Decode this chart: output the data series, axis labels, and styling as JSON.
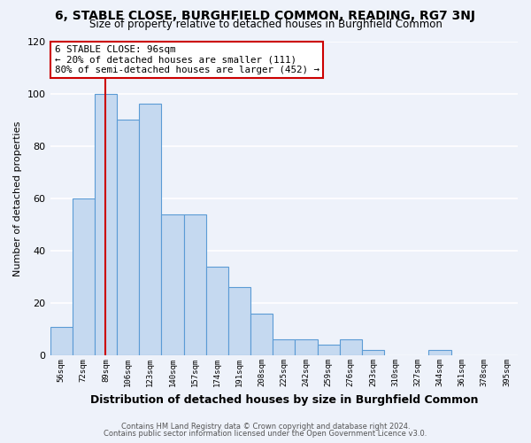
{
  "title": "6, STABLE CLOSE, BURGHFIELD COMMON, READING, RG7 3NJ",
  "subtitle": "Size of property relative to detached houses in Burghfield Common",
  "xlabel": "Distribution of detached houses by size in Burghfield Common",
  "ylabel": "Number of detached properties",
  "bin_labels": [
    "56sqm",
    "72sqm",
    "89sqm",
    "106sqm",
    "123sqm",
    "140sqm",
    "157sqm",
    "174sqm",
    "191sqm",
    "208sqm",
    "225sqm",
    "242sqm",
    "259sqm",
    "276sqm",
    "293sqm",
    "310sqm",
    "327sqm",
    "344sqm",
    "361sqm",
    "378sqm",
    "395sqm"
  ],
  "bar_heights": [
    11,
    60,
    100,
    90,
    96,
    54,
    54,
    34,
    26,
    16,
    6,
    6,
    4,
    6,
    2,
    0,
    0,
    2,
    0,
    0,
    0
  ],
  "bar_color": "#c5d9f0",
  "bar_edge_color": "#5b9bd5",
  "vline_x": 2,
  "vline_color": "#cc0000",
  "annotation_title": "6 STABLE CLOSE: 96sqm",
  "annotation_line1": "← 20% of detached houses are smaller (111)",
  "annotation_line2": "80% of semi-detached houses are larger (452) →",
  "annotation_box_color": "#ffffff",
  "annotation_box_edge": "#cc0000",
  "ylim": [
    0,
    120
  ],
  "yticks": [
    0,
    20,
    40,
    60,
    80,
    100,
    120
  ],
  "footnote1": "Contains HM Land Registry data © Crown copyright and database right 2024.",
  "footnote2": "Contains public sector information licensed under the Open Government Licence v3.0.",
  "bg_color": "#eef2fa",
  "grid_color": "#ffffff"
}
